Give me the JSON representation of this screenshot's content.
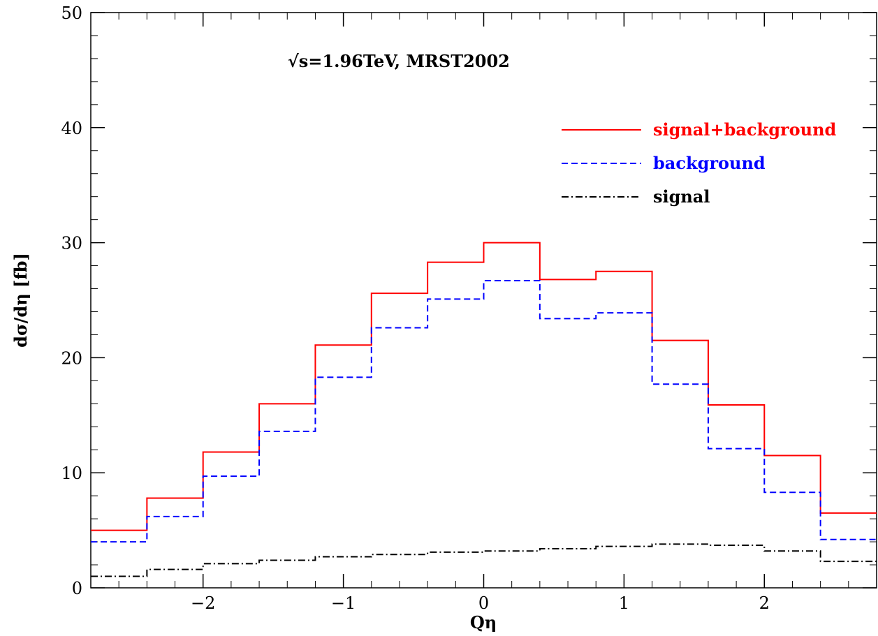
{
  "chart_data": {
    "type": "line",
    "step": true,
    "xlabel": "Qη",
    "ylabel": "dσ/dη  [fb]",
    "annotation": "√s=1.96TeV,  MRST2002",
    "xlim": [
      -2.8,
      2.8
    ],
    "ylim": [
      0,
      50
    ],
    "xticks": [
      -2,
      -1,
      0,
      1,
      2
    ],
    "xtick_labels": [
      "−2",
      "−1",
      "0",
      "1",
      "2"
    ],
    "yticks": [
      0,
      10,
      20,
      30,
      40,
      50
    ],
    "ytick_labels": [
      "0",
      "10",
      "20",
      "30",
      "40",
      "50"
    ],
    "bin_edges": [
      -2.8,
      -2.4,
      -2.0,
      -1.6,
      -1.2,
      -0.8,
      -0.4,
      0.0,
      0.4,
      0.8,
      1.2,
      1.6,
      2.0,
      2.4,
      2.8
    ],
    "legend_position": "top-right",
    "grid": false,
    "series": [
      {
        "name": "signal+background",
        "color": "#ff0000",
        "dash": "solid",
        "values": [
          5.0,
          7.8,
          11.8,
          16.0,
          21.1,
          25.6,
          28.3,
          30.0,
          26.8,
          27.5,
          21.5,
          15.9,
          11.5,
          6.5
        ]
      },
      {
        "name": "background",
        "color": "#0000ff",
        "dash": "dashed",
        "values": [
          4.0,
          6.2,
          9.7,
          13.6,
          18.3,
          22.6,
          25.1,
          26.7,
          23.4,
          23.9,
          17.7,
          12.1,
          8.3,
          4.2
        ]
      },
      {
        "name": "signal",
        "color": "#000000",
        "dash": "dashdot",
        "values": [
          1.0,
          1.6,
          2.1,
          2.4,
          2.7,
          2.9,
          3.1,
          3.2,
          3.4,
          3.6,
          3.8,
          3.7,
          3.2,
          2.3
        ]
      }
    ]
  }
}
